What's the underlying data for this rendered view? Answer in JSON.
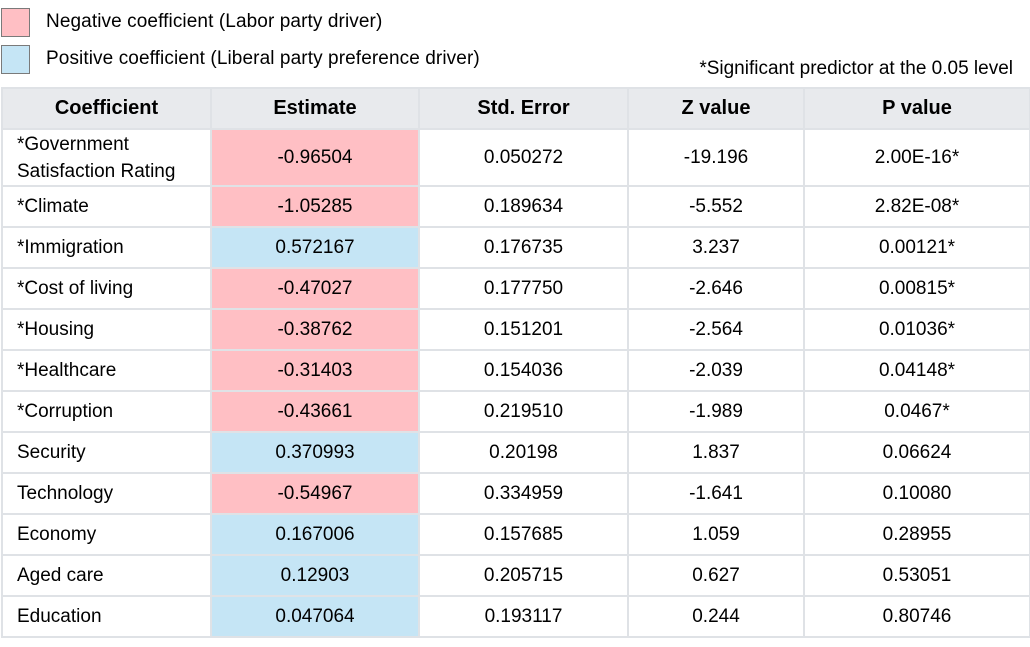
{
  "legend": {
    "items": [
      {
        "label": "Negative coefficient (Labor party driver)",
        "color": "#ffbfc4"
      },
      {
        "label": "Positive coefficient (Liberal party preference driver)",
        "color": "#c5e5f5"
      }
    ]
  },
  "note": "*Significant predictor at the 0.05 level",
  "table": {
    "headers": [
      "Coefficient",
      "Estimate",
      "Std. Error",
      "Z value",
      "P value"
    ],
    "rows": [
      {
        "name": "*Government\nSatisfaction Rating",
        "estimate": "-0.96504",
        "std_error": "0.050272",
        "z": "-19.196",
        "p": "2.00E-16*",
        "sign": "negative"
      },
      {
        "name": "*Climate",
        "estimate": "-1.05285",
        "std_error": "0.189634",
        "z": "-5.552",
        "p": "2.82E-08*",
        "sign": "negative"
      },
      {
        "name": "*Immigration",
        "estimate": "0.572167",
        "std_error": "0.176735",
        "z": "3.237",
        "p": "0.00121*",
        "sign": "positive"
      },
      {
        "name": "*Cost of living",
        "estimate": "-0.47027",
        "std_error": "0.177750",
        "z": "-2.646",
        "p": "0.00815*",
        "sign": "negative"
      },
      {
        "name": "*Housing",
        "estimate": "-0.38762",
        "std_error": "0.151201",
        "z": "-2.564",
        "p": "0.01036*",
        "sign": "negative"
      },
      {
        "name": "*Healthcare",
        "estimate": "-0.31403",
        "std_error": "0.154036",
        "z": "-2.039",
        "p": "0.04148*",
        "sign": "negative"
      },
      {
        "name": "*Corruption",
        "estimate": "-0.43661",
        "std_error": "0.219510",
        "z": "-1.989",
        "p": "0.0467*",
        "sign": "negative"
      },
      {
        "name": "Security",
        "estimate": "0.370993",
        "std_error": "0.20198",
        "z": "1.837",
        "p": "0.06624",
        "sign": "positive"
      },
      {
        "name": "Technology",
        "estimate": "-0.54967",
        "std_error": "0.334959",
        "z": "-1.641",
        "p": "0.10080",
        "sign": "negative"
      },
      {
        "name": "Economy",
        "estimate": "0.167006",
        "std_error": "0.157685",
        "z": "1.059",
        "p": "0.28955",
        "sign": "positive"
      },
      {
        "name": "Aged care",
        "estimate": "0.12903",
        "std_error": "0.205715",
        "z": "0.627",
        "p": "0.53051",
        "sign": "positive"
      },
      {
        "name": "Education",
        "estimate": "0.047064",
        "std_error": "0.193117",
        "z": "0.244",
        "p": "0.80746",
        "sign": "positive"
      }
    ]
  }
}
